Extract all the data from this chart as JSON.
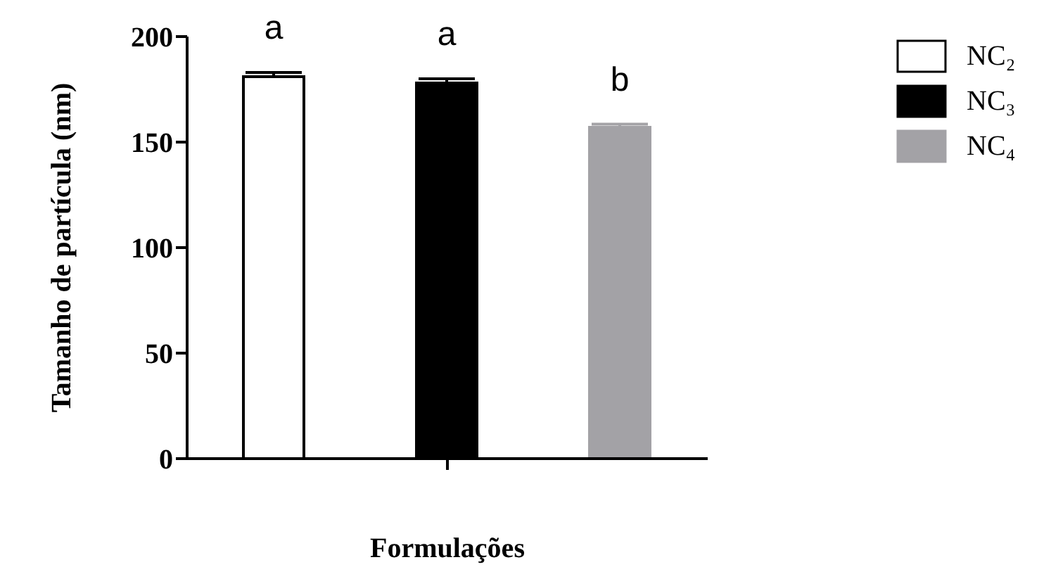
{
  "chart_data": {
    "type": "bar",
    "xlabel": "Formulações",
    "ylabel": "Tamanho de partícula (nm)",
    "categories": [
      null
    ],
    "series": [
      {
        "name": "NC₂",
        "color": "#ffffff",
        "values": [
          181
        ],
        "errors": [
          2
        ]
      },
      {
        "name": "NC₃",
        "color": "#000000",
        "values": [
          178
        ],
        "errors": [
          2
        ]
      },
      {
        "name": "NC₄",
        "color": "#a3a2a6",
        "values": [
          157
        ],
        "errors": [
          1.5
        ]
      }
    ],
    "ylim": [
      0,
      200
    ],
    "yticks": [
      0,
      50,
      100,
      150,
      200
    ],
    "grid": false,
    "legend": "top right",
    "annotations": [
      "a",
      "a",
      "b"
    ]
  }
}
